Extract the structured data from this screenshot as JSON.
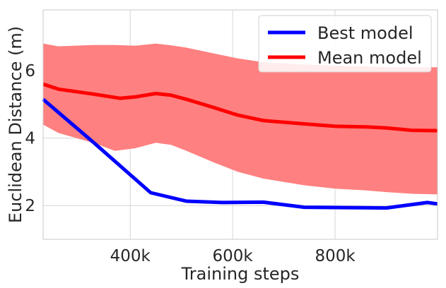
{
  "chart_data": {
    "type": "line",
    "title": "",
    "xlabel": "Training steps",
    "ylabel": "Euclidean Distance (m)",
    "xlim": [
      230000,
      1000000
    ],
    "ylim": [
      1.0,
      7.8
    ],
    "xticks": [
      400000,
      600000,
      800000
    ],
    "xtick_labels": [
      "400k",
      "600k",
      "800k"
    ],
    "yticks": [
      2,
      4,
      6
    ],
    "ytick_labels": [
      "2",
      "4",
      "6"
    ],
    "grid": true,
    "legend_position": "top-right",
    "series": [
      {
        "name": "Best model",
        "color": "#0000ff",
        "x": [
          230000,
          330000,
          440000,
          510000,
          580000,
          660000,
          740000,
          820000,
          900000,
          980000,
          1000000
        ],
        "y": [
          5.15,
          3.85,
          2.38,
          2.13,
          2.09,
          2.1,
          1.95,
          1.94,
          1.93,
          2.09,
          2.05
        ]
      },
      {
        "name": "Mean model",
        "color": "#ff0000",
        "x": [
          230000,
          260000,
          330000,
          380000,
          410000,
          450000,
          480000,
          510000,
          560000,
          610000,
          660000,
          740000,
          800000,
          860000,
          900000,
          950000,
          1000000
        ],
        "y": [
          5.6,
          5.45,
          5.3,
          5.18,
          5.22,
          5.32,
          5.27,
          5.15,
          4.92,
          4.68,
          4.52,
          4.42,
          4.35,
          4.33,
          4.3,
          4.23,
          4.22
        ]
      }
    ],
    "band": {
      "color": "#ff8080",
      "x": [
        230000,
        260000,
        330000,
        370000,
        410000,
        450000,
        480000,
        510000,
        560000,
        610000,
        660000,
        740000,
        800000,
        860000,
        900000,
        950000,
        1000000
      ],
      "upper": [
        6.8,
        6.72,
        6.76,
        6.76,
        6.74,
        6.8,
        6.75,
        6.68,
        6.52,
        6.36,
        6.25,
        6.18,
        6.14,
        6.12,
        6.1,
        6.1,
        6.1
      ],
      "lower": [
        4.4,
        4.15,
        3.85,
        3.62,
        3.7,
        3.86,
        3.8,
        3.62,
        3.3,
        3.0,
        2.8,
        2.6,
        2.5,
        2.45,
        2.4,
        2.35,
        2.33
      ]
    }
  }
}
